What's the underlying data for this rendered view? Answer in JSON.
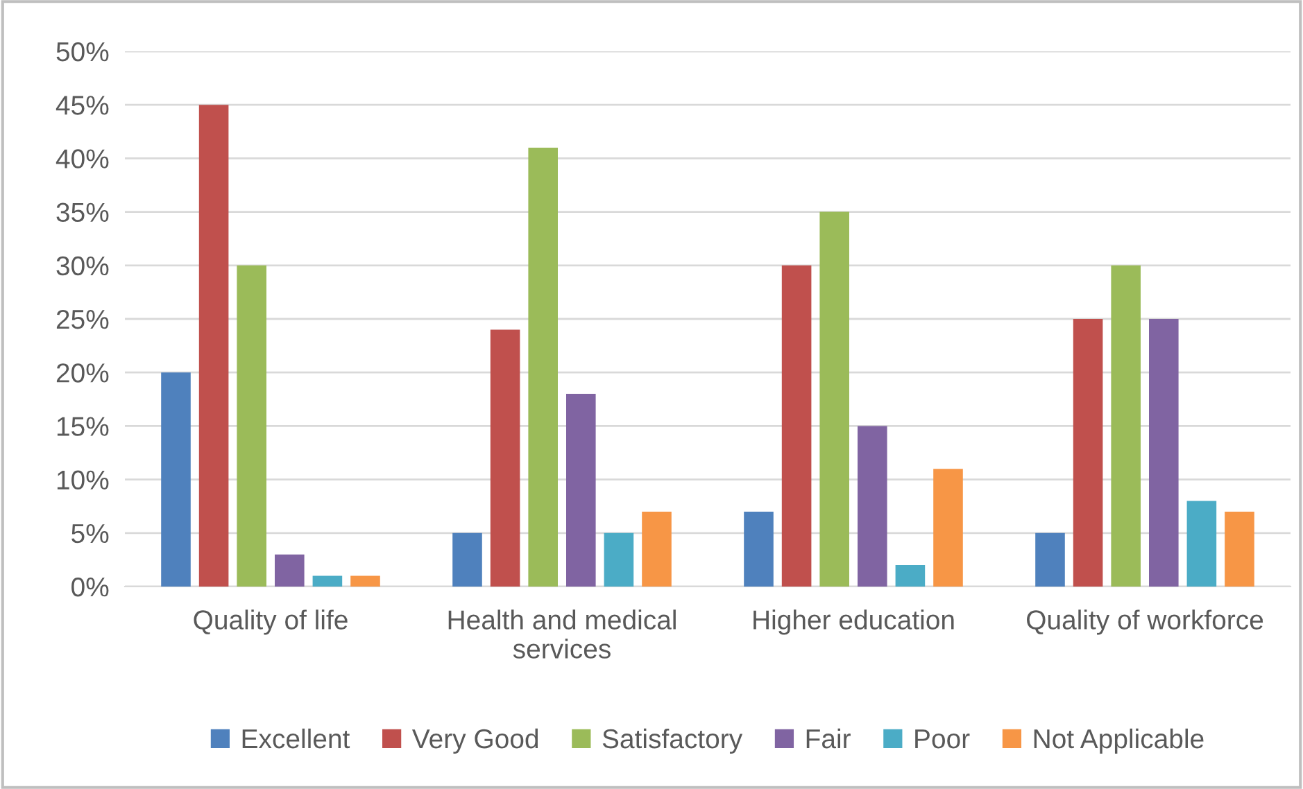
{
  "chart_data": {
    "type": "bar",
    "categories": [
      "Quality of life",
      "Health and medical services",
      "Higher education",
      "Quality of workforce"
    ],
    "series": [
      {
        "name": "Excellent",
        "color": "#4f81bd",
        "values": [
          20,
          5,
          7,
          5
        ]
      },
      {
        "name": "Very Good",
        "color": "#c0504d",
        "values": [
          45,
          24,
          30,
          25
        ]
      },
      {
        "name": "Satisfactory",
        "color": "#9bbb59",
        "values": [
          30,
          41,
          35,
          30
        ]
      },
      {
        "name": "Fair",
        "color": "#8064a2",
        "values": [
          3,
          18,
          15,
          25
        ]
      },
      {
        "name": "Poor",
        "color": "#4bacc6",
        "values": [
          1,
          5,
          2,
          8
        ]
      },
      {
        "name": "Not Applicable",
        "color": "#f79646",
        "values": [
          1,
          7,
          11,
          7
        ]
      }
    ],
    "ylim": [
      0,
      50
    ],
    "yticks": [
      {
        "value": 0,
        "label": "0%"
      },
      {
        "value": 5,
        "label": "5%"
      },
      {
        "value": 10,
        "label": "10%"
      },
      {
        "value": 15,
        "label": "15%"
      },
      {
        "value": 20,
        "label": "20%"
      },
      {
        "value": 25,
        "label": "25%"
      },
      {
        "value": 30,
        "label": "30%"
      },
      {
        "value": 35,
        "label": "35%"
      },
      {
        "value": 40,
        "label": "40%"
      },
      {
        "value": 45,
        "label": "45%"
      },
      {
        "value": 50,
        "label": "50%"
      }
    ],
    "grid": "y",
    "legend": "bottom"
  }
}
